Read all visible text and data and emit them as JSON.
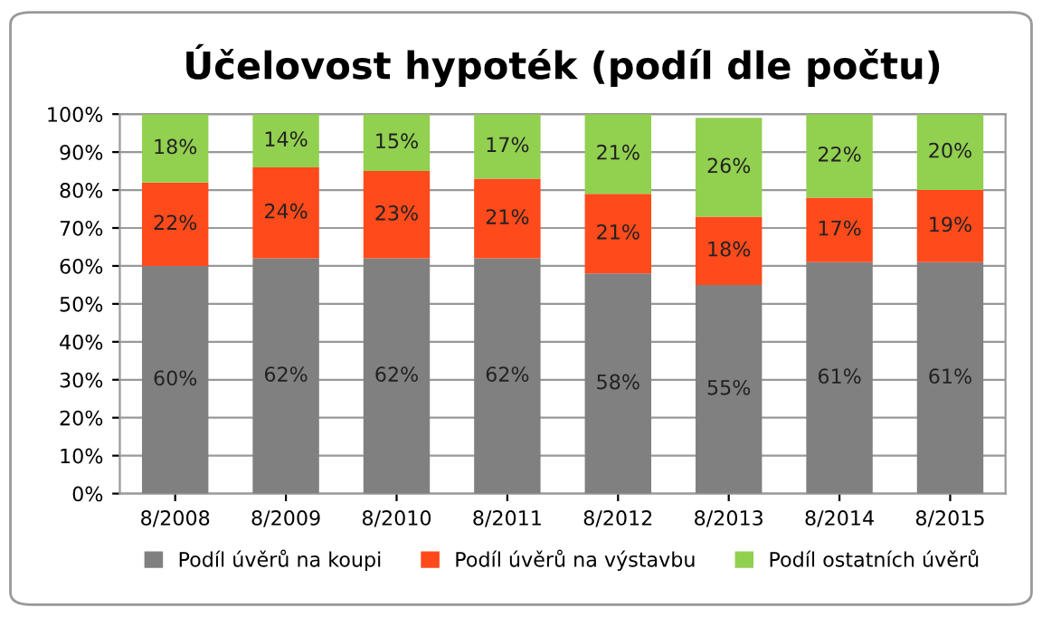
{
  "chart_data": {
    "type": "bar",
    "title": "Účelovost hypoték (podíl dle počtu)",
    "stacked": true,
    "categories": [
      "8/2008",
      "8/2009",
      "8/2010",
      "8/2011",
      "8/2012",
      "8/2013",
      "8/2014",
      "8/2015"
    ],
    "series": [
      {
        "name": "Podíl úvěrů na koupi",
        "color": "#808080",
        "values": [
          60,
          62,
          62,
          62,
          58,
          55,
          61,
          61
        ],
        "value_labels": [
          "60%",
          "62%",
          "62%",
          "62%",
          "58%",
          "55%",
          "61%",
          "61%"
        ]
      },
      {
        "name": "Podíl úvěrů na výstavbu",
        "color": "#ff4a1c",
        "values": [
          22,
          24,
          23,
          21,
          21,
          18,
          17,
          19
        ],
        "value_labels": [
          "22%",
          "24%",
          "23%",
          "21%",
          "21%",
          "18%",
          "17%",
          "19%"
        ]
      },
      {
        "name": "Podíl ostatních úvěrů",
        "color": "#92d050",
        "values": [
          18,
          14,
          15,
          17,
          21,
          26,
          22,
          20
        ],
        "value_labels": [
          "18%",
          "14%",
          "15%",
          "17%",
          "21%",
          "26%",
          "22%",
          "20%"
        ]
      }
    ],
    "ylim": [
      0,
      100
    ],
    "yticks": [
      {
        "value": 0,
        "label": "0%"
      },
      {
        "value": 10,
        "label": "10%"
      },
      {
        "value": 20,
        "label": "20%"
      },
      {
        "value": 30,
        "label": "30%"
      },
      {
        "value": 40,
        "label": "40%"
      },
      {
        "value": 50,
        "label": "50%"
      },
      {
        "value": 60,
        "label": "60%"
      },
      {
        "value": 70,
        "label": "70%"
      },
      {
        "value": 80,
        "label": "80%"
      },
      {
        "value": 90,
        "label": "90%"
      },
      {
        "value": 100,
        "label": "100%"
      }
    ],
    "grid": "y",
    "legend": "bottom"
  }
}
